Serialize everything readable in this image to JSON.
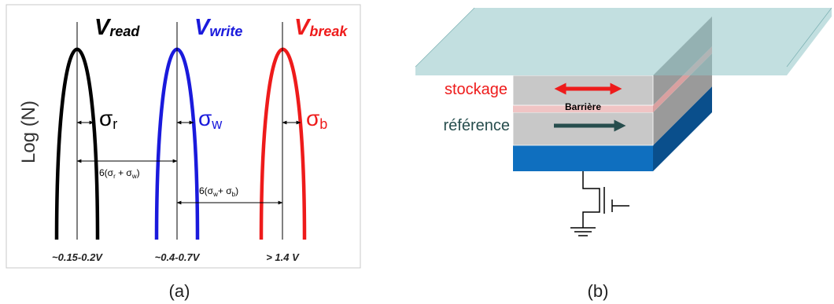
{
  "panel_a": {
    "caption": "(a)",
    "y_axis_label": "Log (N)",
    "curves": [
      {
        "symbol": "V",
        "subscript": "read",
        "color": "#000000",
        "sigma_symbol": "σ",
        "sigma_sub": "r",
        "x_label": "~0.15-0.2V"
      },
      {
        "symbol": "V",
        "subscript": "write",
        "color": "#1a1adc",
        "sigma_symbol": "σ",
        "sigma_sub": "w",
        "x_label": "~0.4-0.7V"
      },
      {
        "symbol": "V",
        "subscript": "break",
        "color": "#ee1b1b",
        "sigma_symbol": "σ",
        "sigma_sub": "b",
        "x_label": "> 1.4 V"
      }
    ],
    "margin_1": {
      "prefix": "6(σ",
      "sub1": "r",
      "mid": " + σ",
      "sub2": "w",
      "suffix": ")"
    },
    "margin_2": {
      "prefix": "6(σ",
      "sub1": "w",
      "mid": "+ σ",
      "sub2": "b",
      "suffix": ")"
    }
  },
  "panel_b": {
    "caption": "(b)",
    "free_layer_label": "stockage",
    "barrier_label": "Barrière",
    "reference_layer_label": "référence",
    "colors": {
      "stockage": "#ee1b1b",
      "reference": "#264d4d",
      "bottom_electrode": "#0f6fbf",
      "top_electrode": "#8fc4c6"
    }
  }
}
